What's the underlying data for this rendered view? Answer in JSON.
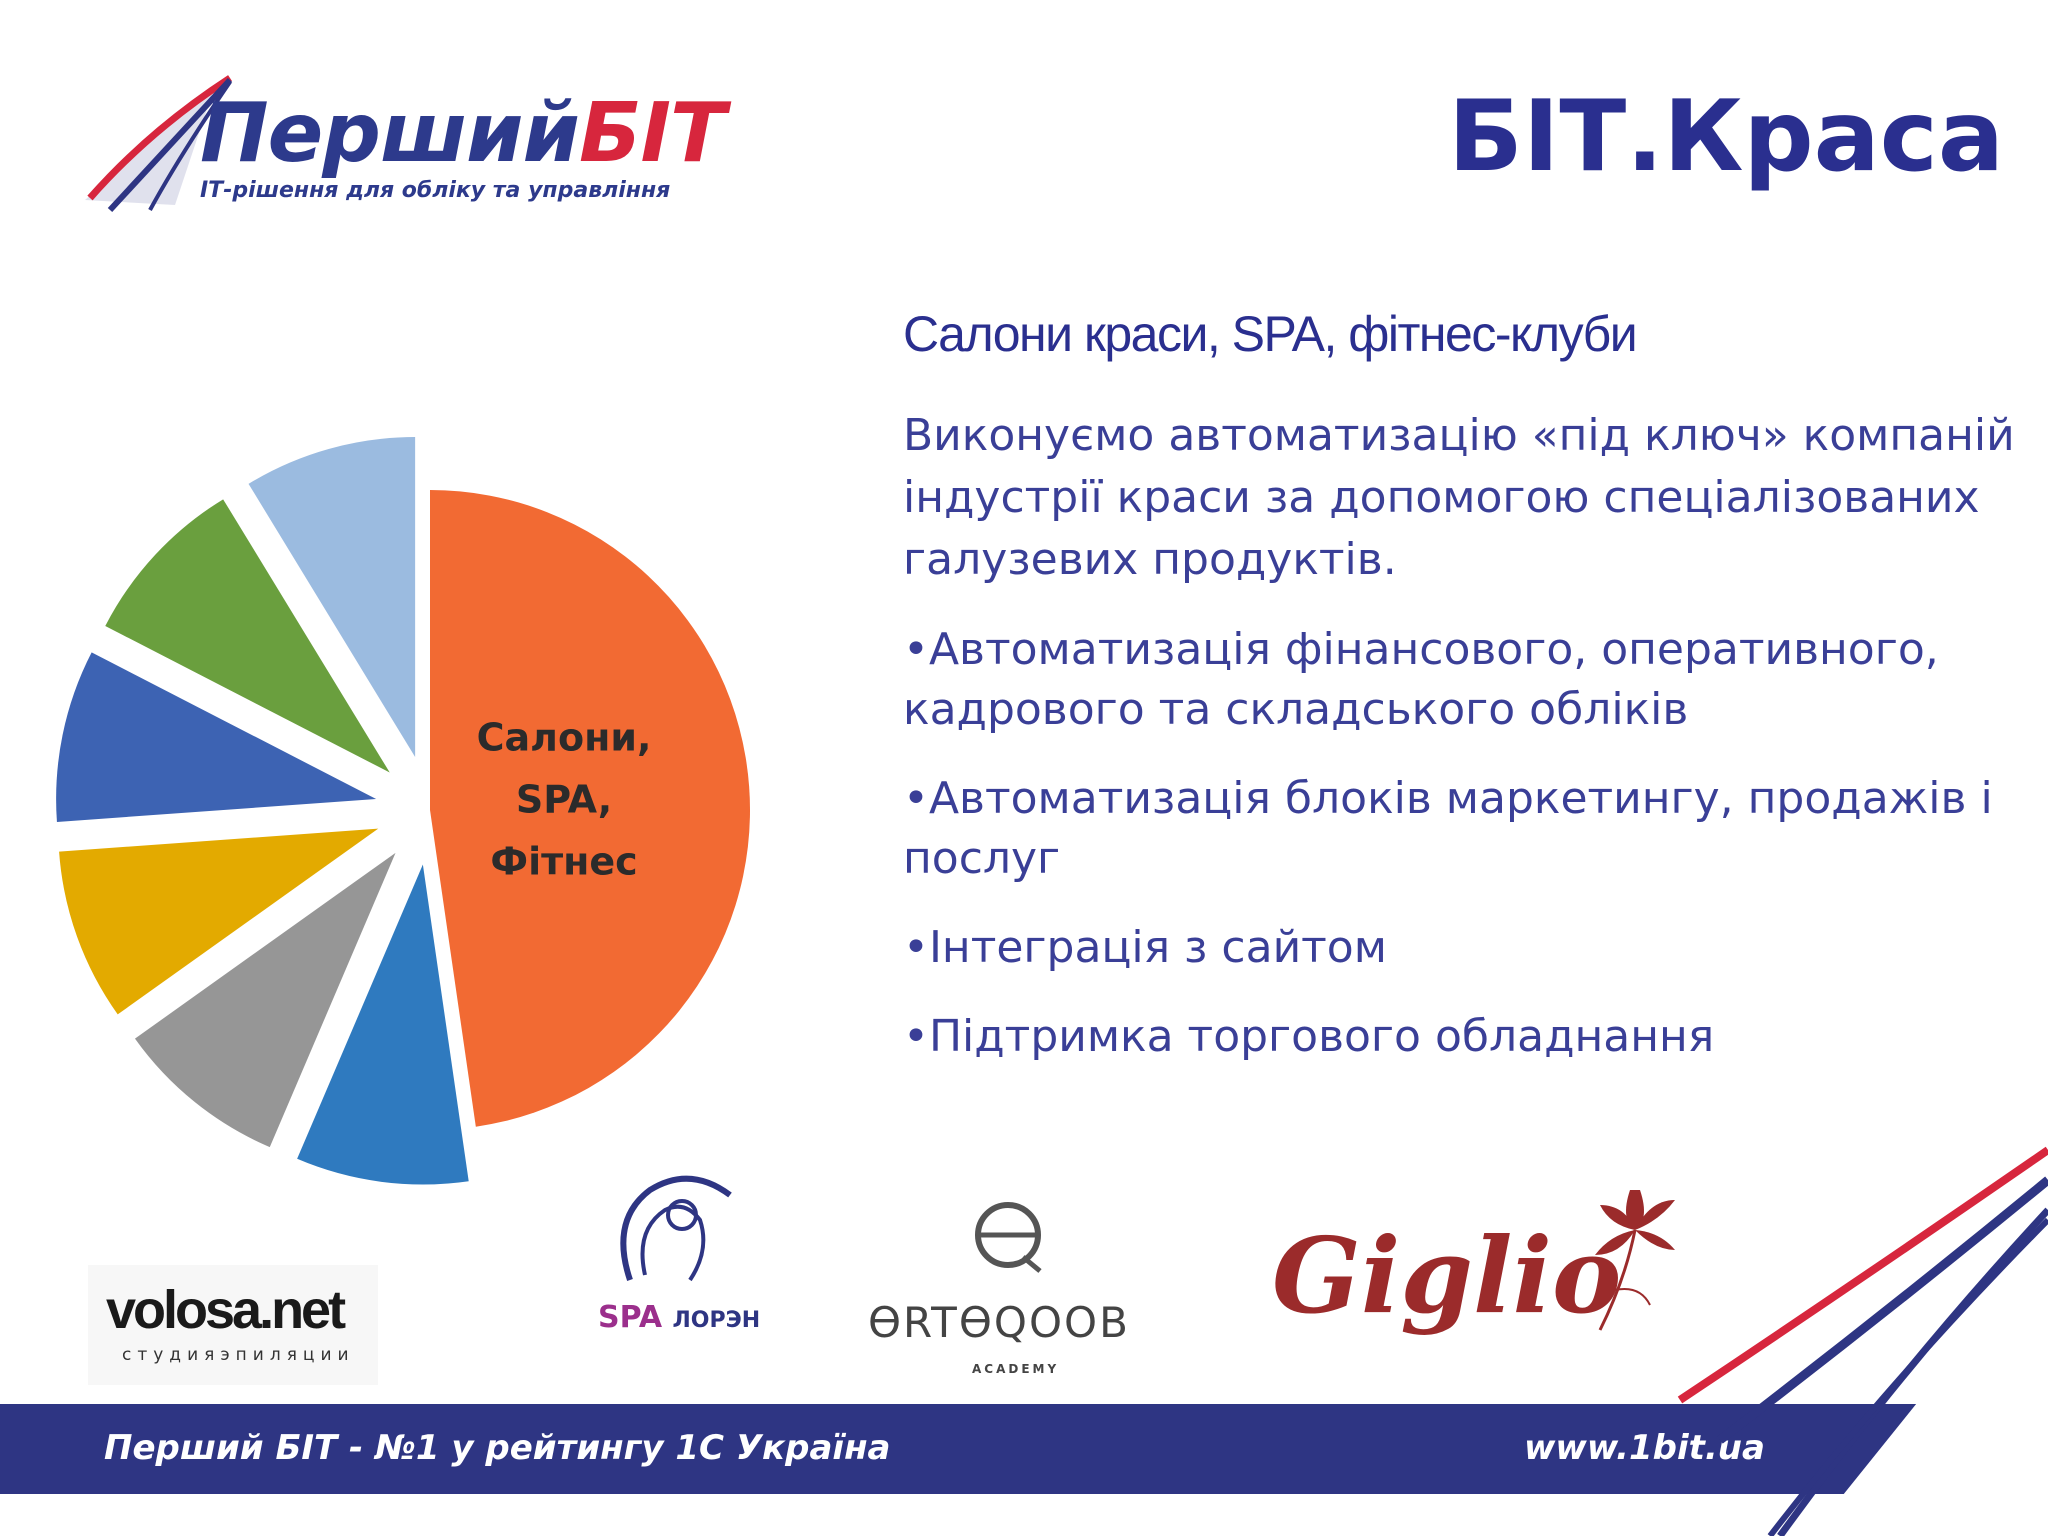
{
  "header": {
    "logo_part1": "Перший",
    "logo_part2": "БІТ",
    "logo_tagline": "ІТ-рішення для обліку та управління",
    "title": "БІТ.Краса"
  },
  "content": {
    "subtitle": "Салони краси, SPA, фітнес-клуби",
    "intro": "Виконуємо автоматизацію «під ключ» компаній індустрії краси за допомогою спеціалізованих галузевих продуктів.",
    "bullets": [
      "Автоматизація фінансового, оперативного, кадрового та складського обліків",
      "Автоматизація блоків маркетингу, продажів і послуг",
      "Інтеграція з сайтом",
      "Підтримка торгового обладнання"
    ]
  },
  "chart_data": {
    "type": "pie",
    "slices": [
      {
        "label": "Салони, SPA, Фітнес",
        "label_lines": [
          "Салони,",
          "SPA,",
          "Фітнес"
        ],
        "value": 43.8,
        "color": "#f26a33",
        "exploded": false
      },
      {
        "label": "",
        "value": 8.0,
        "color": "#2f7abf",
        "exploded": true
      },
      {
        "label": "",
        "value": 8.0,
        "color": "#969696",
        "exploded": true
      },
      {
        "label": "",
        "value": 8.0,
        "color": "#e3aa00",
        "exploded": true
      },
      {
        "label": "",
        "value": 8.0,
        "color": "#3d63b3",
        "exploded": true
      },
      {
        "label": "",
        "value": 8.0,
        "color": "#6a9f3e",
        "exploded": true
      },
      {
        "label": "",
        "value": 8.0,
        "color": "#9bbbe0",
        "exploded": true
      }
    ],
    "start_angle_deg": 0,
    "legend": "none"
  },
  "clients": {
    "volosa_main": "volosa.net",
    "volosa_sub": "студияэпиляции",
    "spa_name": "SPA",
    "spa_brand": "ЛОРЭН",
    "ortoqoob_name": "ƟRTƟQOOB",
    "ortoqoob_sub": "ACADEMY",
    "giglio": "Giglio"
  },
  "footer": {
    "left": "Перший БІТ - №1 у рейтингу 1С Україна",
    "right": "www.1bit.ua"
  },
  "colors": {
    "brand_blue": "#2e3583",
    "brand_red": "#d7263d",
    "giglio_red": "#9b2b2b"
  }
}
